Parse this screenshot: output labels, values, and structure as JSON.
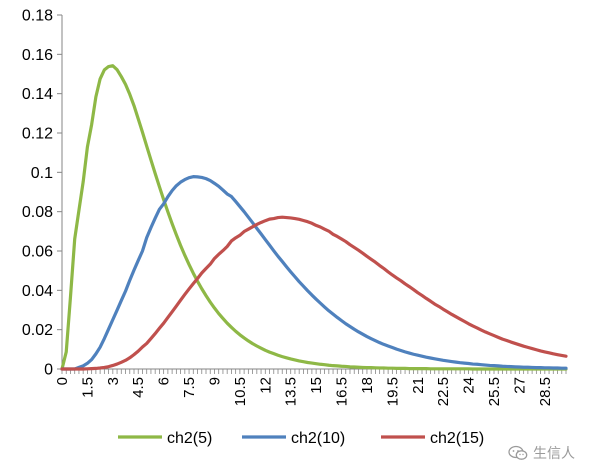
{
  "chart_data": {
    "type": "line",
    "x": [
      0,
      0.25,
      0.5,
      0.75,
      1,
      1.25,
      1.5,
      1.75,
      2,
      2.25,
      2.5,
      2.75,
      3,
      3.25,
      3.5,
      3.75,
      4,
      4.25,
      4.5,
      4.75,
      5,
      5.25,
      5.5,
      5.75,
      6,
      6.25,
      6.5,
      6.75,
      7,
      7.25,
      7.5,
      7.75,
      8,
      8.25,
      8.5,
      8.75,
      9,
      9.25,
      9.5,
      9.75,
      10,
      10.25,
      10.5,
      10.75,
      11,
      11.25,
      11.5,
      11.75,
      12,
      12.25,
      12.5,
      12.75,
      13,
      13.25,
      13.5,
      13.75,
      14,
      14.25,
      14.5,
      14.75,
      15,
      15.25,
      15.5,
      15.75,
      16,
      16.25,
      16.5,
      16.75,
      17,
      17.25,
      17.5,
      17.75,
      18,
      18.25,
      18.5,
      18.75,
      19,
      19.25,
      19.5,
      19.75,
      20,
      20.25,
      20.5,
      20.75,
      21,
      21.25,
      21.5,
      21.75,
      22,
      22.25,
      22.5,
      22.75,
      23,
      23.25,
      23.5,
      23.75,
      24,
      24.25,
      24.5,
      24.75,
      25,
      25.25,
      25.5,
      25.75,
      26,
      26.25,
      26.5,
      26.75,
      27,
      27.25,
      27.5,
      27.75,
      28,
      28.25,
      28.5,
      28.75,
      29,
      29.25,
      29.5,
      29.75
    ],
    "series": [
      {
        "name": "ch2(5)",
        "color": "#8eb846",
        "values": [
          0,
          0.0087,
          0.0366,
          0.0661,
          0.0807,
          0.0952,
          0.1129,
          0.1243,
          0.1384,
          0.1475,
          0.1521,
          0.1538,
          0.1542,
          0.1522,
          0.1487,
          0.1447,
          0.1397,
          0.1339,
          0.1272,
          0.1204,
          0.1133,
          0.1063,
          0.0994,
          0.0927,
          0.0861,
          0.0799,
          0.0739,
          0.0682,
          0.0628,
          0.0578,
          0.0531,
          0.0487,
          0.0446,
          0.0408,
          0.0373,
          0.034,
          0.031,
          0.0282,
          0.0257,
          0.0233,
          0.0212,
          0.0192,
          0.0174,
          0.0158,
          0.0143,
          0.0129,
          0.0117,
          0.0106,
          0.0095,
          0.0086,
          0.0078,
          0.007,
          0.0063,
          0.0057,
          0.0051,
          0.0046,
          0.0041,
          0.0037,
          0.0033,
          0.003,
          0.0027,
          0.0024,
          0.0022,
          0.0019,
          0.0017,
          0.0016,
          0.0014,
          0.0013,
          0.0011,
          0.001,
          0.0009,
          0.0008,
          0.0007,
          0.0007,
          0.0006,
          0.0005,
          0.0005,
          0.0004,
          0.0004,
          0.0003,
          0.0003,
          0.0003,
          0.0002,
          0.0002,
          0.0002,
          0.0002,
          0.0002,
          0.0001,
          0.0001,
          0.0001,
          0.0001,
          0.0001,
          0.0001,
          0.0001,
          0.0001,
          0.0001,
          0.0001,
          0,
          0,
          0,
          0,
          0,
          0,
          0,
          0,
          0,
          0,
          0,
          0,
          0,
          0,
          0,
          0,
          0,
          0,
          0,
          0,
          0,
          0,
          0
        ]
      },
      {
        "name": "ch2(10)",
        "color": "#4f81bd",
        "values": [
          0,
          0,
          0,
          0,
          0.0008,
          0.0016,
          0.0029,
          0.0048,
          0.0077,
          0.0111,
          0.0155,
          0.0203,
          0.0251,
          0.0299,
          0.0348,
          0.0396,
          0.0451,
          0.0503,
          0.0552,
          0.06,
          0.0668,
          0.0719,
          0.0767,
          0.0812,
          0.084,
          0.0876,
          0.0907,
          0.0932,
          0.095,
          0.0963,
          0.0973,
          0.0978,
          0.0977,
          0.0974,
          0.0968,
          0.0958,
          0.0944,
          0.0929,
          0.091,
          0.089,
          0.0877,
          0.0852,
          0.0826,
          0.08,
          0.0772,
          0.0744,
          0.0715,
          0.0687,
          0.0658,
          0.063,
          0.0601,
          0.0573,
          0.0547,
          0.052,
          0.0494,
          0.0469,
          0.0444,
          0.0421,
          0.0398,
          0.0376,
          0.0355,
          0.0335,
          0.0315,
          0.0296,
          0.0279,
          0.0262,
          0.0246,
          0.023,
          0.0216,
          0.0202,
          0.0189,
          0.0177,
          0.0165,
          0.0154,
          0.0144,
          0.0134,
          0.0125,
          0.0117,
          0.0109,
          0.0101,
          0.0094,
          0.0087,
          0.0081,
          0.0075,
          0.007,
          0.0065,
          0.006,
          0.0056,
          0.0052,
          0.0048,
          0.0044,
          0.0041,
          0.0038,
          0.0035,
          0.0032,
          0.003,
          0.0028,
          0.0025,
          0.0024,
          0.0022,
          0.002,
          0.0018,
          0.0017,
          0.0016,
          0.0014,
          0.0013,
          0.0012,
          0.0011,
          0.001,
          0.0009,
          0.0009,
          0.0008,
          0.0007,
          0.0007,
          0.0006,
          0.0006,
          0.0005,
          0.0005,
          0.0004,
          0.0004
        ]
      },
      {
        "name": "ch2(15)",
        "color": "#c0504d",
        "values": [
          0,
          0,
          0,
          0,
          0,
          0,
          0.0001,
          0.0002,
          0.0003,
          0.0005,
          0.0008,
          0.0012,
          0.0018,
          0.0025,
          0.0034,
          0.0044,
          0.0057,
          0.0073,
          0.0091,
          0.0112,
          0.013,
          0.0155,
          0.018,
          0.0207,
          0.0233,
          0.0262,
          0.0291,
          0.032,
          0.035,
          0.0379,
          0.0407,
          0.0434,
          0.046,
          0.0488,
          0.0511,
          0.0533,
          0.0562,
          0.0583,
          0.0602,
          0.0623,
          0.0651,
          0.0667,
          0.068,
          0.0699,
          0.0711,
          0.0723,
          0.0735,
          0.0745,
          0.0754,
          0.0762,
          0.0765,
          0.077,
          0.0772,
          0.077,
          0.0768,
          0.0765,
          0.0761,
          0.0755,
          0.0749,
          0.0741,
          0.073,
          0.0722,
          0.0711,
          0.0701,
          0.0685,
          0.0674,
          0.0661,
          0.0648,
          0.0632,
          0.0618,
          0.0604,
          0.0589,
          0.0573,
          0.0558,
          0.0543,
          0.0526,
          0.0511,
          0.0494,
          0.0478,
          0.0463,
          0.0449,
          0.0433,
          0.0419,
          0.0404,
          0.0388,
          0.0374,
          0.0359,
          0.0345,
          0.033,
          0.0318,
          0.0304,
          0.0291,
          0.0278,
          0.0266,
          0.0254,
          0.0242,
          0.023,
          0.0219,
          0.0209,
          0.0198,
          0.0188,
          0.0179,
          0.017,
          0.0161,
          0.0152,
          0.0145,
          0.0137,
          0.013,
          0.0123,
          0.0116,
          0.011,
          0.0104,
          0.0098,
          0.0092,
          0.0087,
          0.0082,
          0.0077,
          0.0073,
          0.0069,
          0.0065
        ]
      }
    ],
    "yticks": [
      "0",
      "0.02",
      "0.04",
      "0.06",
      "0.08",
      "0.1",
      "0.12",
      "0.14",
      "0.16",
      "0.18"
    ],
    "xticks": [
      "0",
      "1.5",
      "3",
      "4.5",
      "6",
      "7.5",
      "9",
      "10.5",
      "12",
      "13.5",
      "15",
      "16.5",
      "18",
      "19.5",
      "21",
      "22.5",
      "24",
      "25.5",
      "27",
      "28.5"
    ],
    "ylim": [
      0,
      0.18
    ],
    "xlim": [
      0,
      29.75
    ],
    "title": "",
    "xlabel": "",
    "ylabel": "",
    "grid": false,
    "legend_position": "bottom"
  },
  "watermark": {
    "icon": "wechat-icon",
    "text": "生信人"
  }
}
